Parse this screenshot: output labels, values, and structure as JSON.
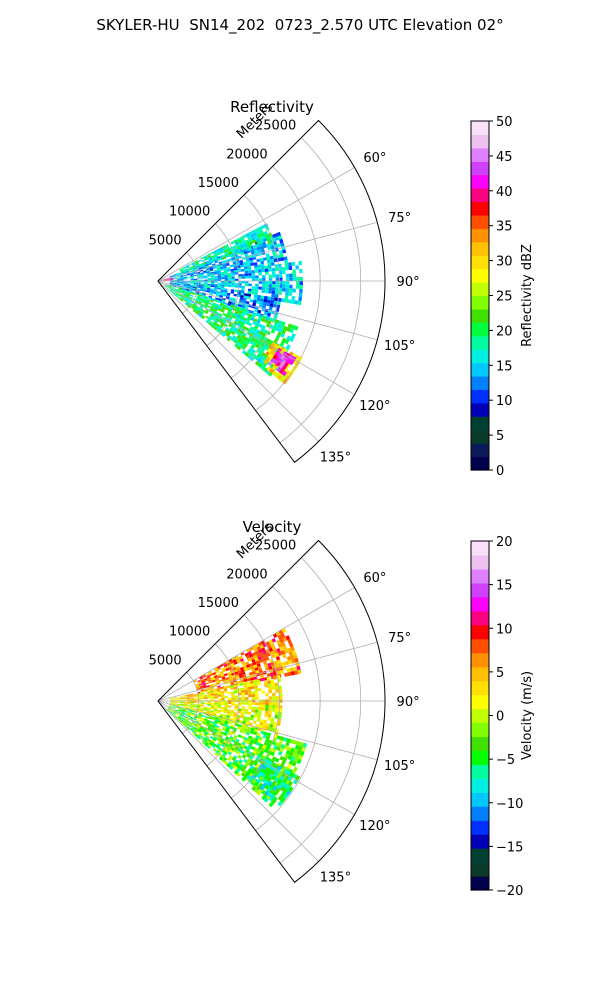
{
  "figure": {
    "title": "SKYLER-HU  SN14_202  0723_2.570 UTC Elevation 02°"
  },
  "chart_data": [
    {
      "type": "heatmap",
      "title": "Reflectivity",
      "radial_axis_label": "Meters",
      "radial_ticks": [
        5000,
        10000,
        15000,
        20000,
        25000
      ],
      "radial_ticks_text": [
        "5000",
        "10000",
        "15000",
        "20000",
        "25000"
      ],
      "rlim": [
        0,
        28000
      ],
      "theta_ticks": [
        60,
        75,
        90,
        105,
        120,
        135
      ],
      "theta_ticks_text": [
        "60°",
        "75°",
        "90°",
        "105°",
        "120°",
        "135°"
      ],
      "theta_range_deg": [
        45,
        143
      ],
      "grid": true,
      "colorbar": {
        "label": "Reflectivity dBZ",
        "range": [
          0,
          50
        ],
        "ticks": [
          0,
          5,
          10,
          15,
          20,
          25,
          30,
          35,
          40,
          45,
          50
        ],
        "ticks_text": [
          "0",
          "5",
          "10",
          "15",
          "20",
          "25",
          "30",
          "35",
          "40",
          "45",
          "50"
        ],
        "colormap": [
          "#00004d",
          "#0a1a55",
          "#0a3a2a",
          "#004030",
          "#0000b4",
          "#0030ff",
          "#0080ff",
          "#00c8ff",
          "#00f0e0",
          "#00ffa0",
          "#00ff40",
          "#40e000",
          "#80ff00",
          "#c0ff00",
          "#ffff00",
          "#ffe000",
          "#ffc000",
          "#ff9000",
          "#ff5000",
          "#ff0000",
          "#ff0080",
          "#ff00ff",
          "#d040ff",
          "#e080ff",
          "#f0c0f0",
          "#f8e0f8"
        ]
      },
      "regions": [
        {
          "theta": [
            68,
            82
          ],
          "r": [
            1500,
            16000
          ],
          "value": 14
        },
        {
          "theta": [
            82,
            98
          ],
          "r": [
            1500,
            17500
          ],
          "value": 15
        },
        {
          "theta": [
            98,
            108
          ],
          "r": [
            1500,
            15000
          ],
          "value": 13
        },
        {
          "theta": [
            108,
            130
          ],
          "r": [
            1000,
            18000
          ],
          "value": 19
        },
        {
          "theta": [
            62,
            70
          ],
          "r": [
            3000,
            15000
          ],
          "value": 18
        },
        {
          "theta": [
            118,
            128
          ],
          "r": [
            16000,
            20000
          ],
          "value": 30
        },
        {
          "theta": [
            119,
            126
          ],
          "r": [
            17000,
            19500
          ],
          "value": 42
        },
        {
          "theta": [
            76,
            86
          ],
          "r": [
            200,
            1500
          ],
          "value": 40
        }
      ]
    },
    {
      "type": "heatmap",
      "title": "Velocity",
      "radial_axis_label": "Meters",
      "radial_ticks": [
        5000,
        10000,
        15000,
        20000,
        25000
      ],
      "radial_ticks_text": [
        "5000",
        "10000",
        "15000",
        "20000",
        "25000"
      ],
      "rlim": [
        0,
        28000
      ],
      "theta_ticks": [
        60,
        75,
        90,
        105,
        120,
        135
      ],
      "theta_ticks_text": [
        "60°",
        "75°",
        "90°",
        "105°",
        "120°",
        "135°"
      ],
      "theta_range_deg": [
        45,
        143
      ],
      "grid": true,
      "colorbar": {
        "label": "Velocity (m/s)",
        "range": [
          -20,
          20
        ],
        "ticks": [
          -20,
          -15,
          -10,
          -5,
          0,
          5,
          10,
          15,
          20
        ],
        "ticks_text": [
          "−20",
          "−15",
          "−10",
          "−5",
          "0",
          "5",
          "10",
          "15",
          "20"
        ],
        "colormap": [
          "#00004d",
          "#0a3a2a",
          "#004030",
          "#0000b4",
          "#0030ff",
          "#0080ff",
          "#00c8ff",
          "#00f0e0",
          "#00ffa0",
          "#00ff00",
          "#40e000",
          "#80ff00",
          "#c0ff00",
          "#ffff00",
          "#ffe000",
          "#ffc000",
          "#ff9000",
          "#ff5000",
          "#ff0000",
          "#ff0080",
          "#ff00ff",
          "#d040ff",
          "#e080ff",
          "#f0c0f0",
          "#f8e0f8"
        ]
      },
      "regions": [
        {
          "theta": [
            60,
            78
          ],
          "r": [
            5000,
            18000
          ],
          "value": 7
        },
        {
          "theta": [
            78,
            92
          ],
          "r": [
            1500,
            15000
          ],
          "value": 3
        },
        {
          "theta": [
            92,
            106
          ],
          "r": [
            1500,
            15000
          ],
          "value": 1
        },
        {
          "theta": [
            106,
            132
          ],
          "r": [
            1500,
            19000
          ],
          "value": -3
        },
        {
          "theta": [
            118,
            130
          ],
          "r": [
            14000,
            19500
          ],
          "value": -6
        }
      ]
    }
  ]
}
